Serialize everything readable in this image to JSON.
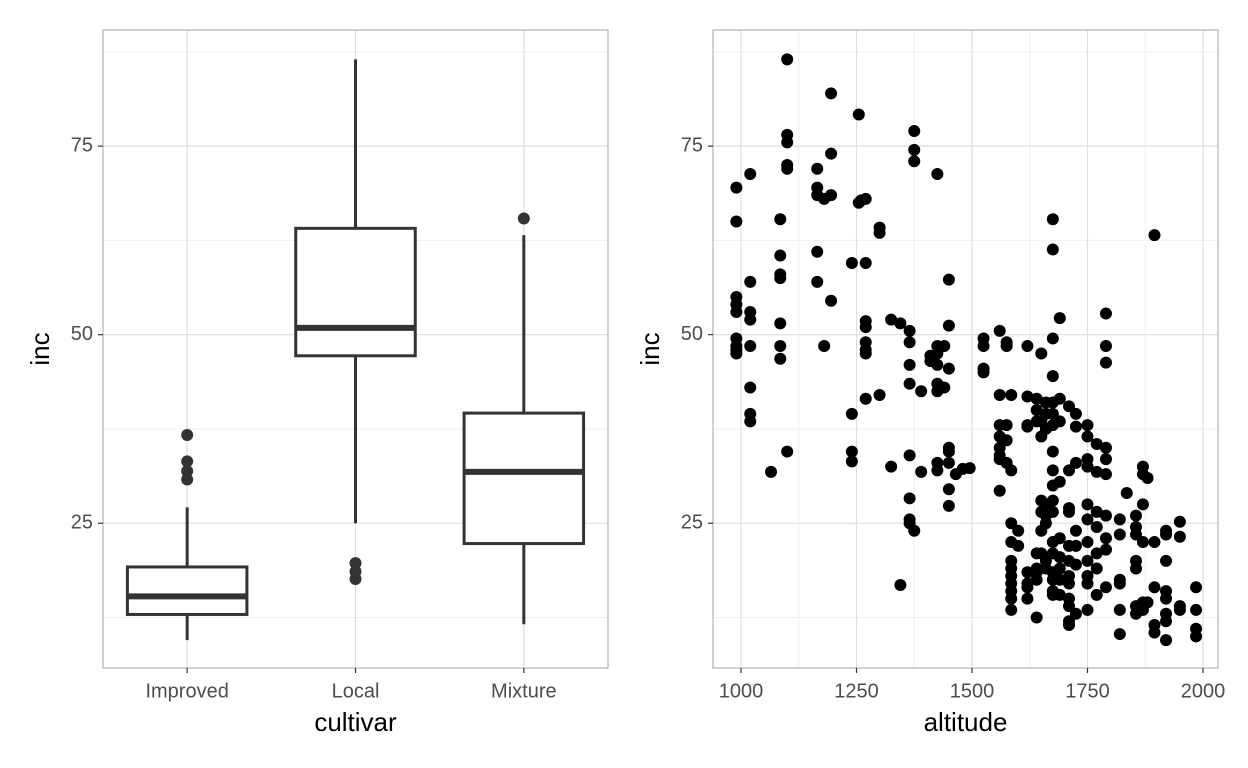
{
  "chart_data": [
    {
      "type": "box",
      "x_label": "cultivar",
      "y_label": "inc",
      "categories": [
        "Improved",
        "Local",
        "Mixture"
      ],
      "whisker_low": [
        9.5,
        25,
        11.6
      ],
      "q1": [
        12.9,
        47.2,
        22.3
      ],
      "median": [
        15.3,
        50.9,
        31.8
      ],
      "q3": [
        19.2,
        64.1,
        39.6
      ],
      "whisker_high": [
        27.1,
        86.5,
        63.2
      ],
      "outliers": [
        [
          36.7,
          33.2,
          31.9,
          30.8
        ],
        [
          19.7,
          18.6,
          17.6
        ],
        [
          65.4
        ]
      ],
      "color": "#333333",
      "ylim": [
        5.8,
        90.4
      ],
      "yticks": [
        25,
        50,
        75
      ],
      "minor_yticks": [
        12.5,
        37.5,
        62.5,
        87.5
      ],
      "grid": true
    },
    {
      "type": "scatter",
      "x_label": "altitude",
      "y_label": "inc",
      "color": "#000000",
      "x": [
        990,
        990,
        990,
        990,
        990,
        990,
        990,
        990,
        990,
        1020,
        1020,
        1020,
        1020,
        1020,
        1020,
        1020,
        1020,
        1065,
        1085,
        1085,
        1085,
        1085,
        1085,
        1085,
        1085,
        1100,
        1100,
        1100,
        1100,
        1100,
        1100,
        1165,
        1165,
        1165,
        1165,
        1165,
        1180,
        1180,
        1195,
        1195,
        1195,
        1195,
        1240,
        1240,
        1240,
        1240,
        1255,
        1255,
        1260,
        1270,
        1270,
        1270,
        1270,
        1270,
        1270,
        1270,
        1270,
        1300,
        1300,
        1300,
        1325,
        1325,
        1345,
        1345,
        1365,
        1365,
        1365,
        1365,
        1365,
        1365,
        1365,
        1365,
        1375,
        1375,
        1375,
        1375,
        1390,
        1390,
        1410,
        1410,
        1425,
        1425,
        1425,
        1425,
        1425,
        1425,
        1425,
        1425,
        1440,
        1440,
        1450,
        1450,
        1450,
        1450,
        1450,
        1450,
        1450,
        1450,
        1465,
        1480,
        1495,
        1525,
        1525,
        1525,
        1525,
        1560,
        1560,
        1560,
        1560,
        1560,
        1560,
        1560,
        1560,
        1575,
        1575,
        1575,
        1575,
        1575,
        1585,
        1585,
        1585,
        1585,
        1585,
        1585,
        1585,
        1585,
        1585,
        1585,
        1585,
        1600,
        1600,
        1620,
        1620,
        1620,
        1620,
        1620,
        1620,
        1620,
        1620,
        1640,
        1640,
        1640,
        1640,
        1640,
        1640,
        1640,
        1640,
        1650,
        1650,
        1650,
        1650,
        1650,
        1650,
        1650,
        1660,
        1660,
        1660,
        1660,
        1660,
        1660,
        1660,
        1660,
        1675,
        1675,
        1675,
        1675,
        1675,
        1675,
        1675,
        1675,
        1675,
        1675,
        1675,
        1675,
        1675,
        1675,
        1675,
        1675,
        1675,
        1675,
        1690,
        1690,
        1690,
        1690,
        1690,
        1690,
        1690,
        1690,
        1690,
        1710,
        1710,
        1710,
        1710,
        1710,
        1710,
        1710,
        1710,
        1710,
        1710,
        1710,
        1710,
        1725,
        1725,
        1725,
        1725,
        1725,
        1725,
        1725,
        1750,
        1750,
        1750,
        1750,
        1750,
        1750,
        1750,
        1750,
        1750,
        1750,
        1750,
        1770,
        1770,
        1770,
        1770,
        1770,
        1770,
        1770,
        1790,
        1790,
        1790,
        1790,
        1790,
        1790,
        1790,
        1790,
        1790,
        1790,
        1820,
        1820,
        1820,
        1820,
        1820,
        1820,
        1835,
        1855,
        1855,
        1855,
        1855,
        1855,
        1855,
        1855,
        1870,
        1870,
        1870,
        1870,
        1870,
        1870,
        1880,
        1880,
        1895,
        1895,
        1895,
        1895,
        1895,
        1920,
        1920,
        1920,
        1920,
        1920,
        1920,
        1920,
        1920,
        1950,
        1950,
        1950,
        1950,
        1985,
        1985,
        1985,
        1985
      ],
      "y": [
        69.5,
        65,
        55,
        54,
        53,
        49.5,
        48.5,
        48,
        47.5,
        71.3,
        57,
        53,
        52,
        48.5,
        43,
        39.5,
        38.5,
        31.8,
        65.3,
        60.5,
        58,
        57.5,
        51.5,
        48.5,
        46.8,
        86.5,
        76.5,
        75.5,
        72.5,
        72,
        34.5,
        72,
        69.5,
        68.5,
        61,
        57,
        68,
        48.5,
        82,
        74,
        68.5,
        54.5,
        59.5,
        39.5,
        34.5,
        33.2,
        79.2,
        67.5,
        67.8,
        68,
        59.5,
        51.8,
        51,
        49,
        48,
        47.5,
        41.5,
        64.2,
        63.5,
        42,
        52,
        32.5,
        51.5,
        16.8,
        50.5,
        49,
        46,
        43.5,
        34,
        28.3,
        25.5,
        25,
        77,
        74.5,
        73,
        24,
        42.5,
        31.8,
        47.2,
        46.5,
        71.3,
        48.5,
        47.5,
        46,
        43.5,
        42.5,
        33,
        32,
        48.5,
        43,
        57.3,
        51.2,
        45.5,
        35,
        34.5,
        33,
        29.5,
        27.3,
        31.5,
        32.2,
        32.3,
        49.5,
        48.5,
        45.5,
        45,
        50.5,
        42,
        38,
        36.5,
        35,
        34,
        33.5,
        29.3,
        49,
        48.5,
        38,
        36,
        33,
        42,
        32,
        25,
        22.5,
        20,
        19,
        18,
        17,
        16,
        15,
        13.5,
        24,
        22,
        48.5,
        41.8,
        38,
        37.8,
        18.5,
        17,
        16.5,
        15,
        41.5,
        40,
        38.5,
        21,
        19,
        18.5,
        17.5,
        12.5,
        47.5,
        38.5,
        36.5,
        28,
        26.5,
        24,
        21,
        41,
        39.5,
        37.5,
        27,
        26,
        25,
        20,
        19,
        65.3,
        61.3,
        49.5,
        44.5,
        41,
        39.5,
        38,
        34.5,
        32,
        30,
        28,
        26.5,
        22.5,
        21,
        18.5,
        17.5,
        16,
        15.5,
        52.2,
        41.5,
        38.5,
        30.5,
        23,
        20.5,
        19,
        17.5,
        15.5,
        40.5,
        32,
        27,
        26.5,
        22,
        20,
        18,
        17,
        15,
        14,
        12,
        11.5,
        39.5,
        37.8,
        33,
        24,
        22,
        19.5,
        13,
        38,
        36.5,
        33.5,
        32.5,
        27.5,
        25.5,
        22.5,
        20,
        18,
        17,
        13.5,
        35.5,
        31.8,
        26.5,
        24.5,
        21,
        19,
        15.5,
        52.8,
        48.5,
        46.3,
        35,
        33.5,
        31.5,
        26,
        23,
        21.5,
        16.5,
        25.5,
        23.5,
        17.5,
        17,
        13.5,
        10.3,
        29,
        26,
        24.5,
        23.5,
        20,
        19,
        14,
        13,
        32.5,
        31.5,
        27.5,
        22.5,
        14.5,
        13.5,
        31,
        14.5,
        63.2,
        22.5,
        16.5,
        11.5,
        10.5,
        24,
        23.5,
        20,
        16,
        15,
        13,
        12,
        9.5,
        25.2,
        23.2,
        14,
        13.5,
        16.5,
        13.5,
        11,
        10
      ],
      "xlim": [
        939.4,
        2032.5
      ],
      "xticks": [
        1000,
        1250,
        1500,
        1750,
        2000
      ],
      "minor_xticks": [
        1125,
        1375,
        1625,
        1875
      ],
      "ylim": [
        5.8,
        90.4
      ],
      "yticks": [
        25,
        50,
        75
      ],
      "minor_yticks": [
        12.5,
        37.5,
        62.5,
        87.5
      ],
      "grid": true
    }
  ]
}
